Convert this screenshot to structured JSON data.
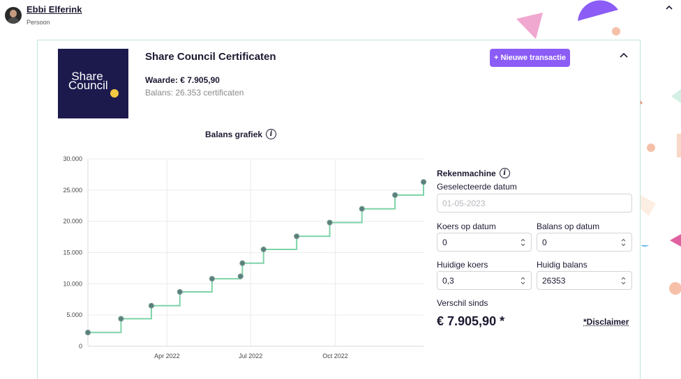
{
  "person": {
    "name": "Ebbi Elferink",
    "type": "Persoon"
  },
  "asset": {
    "name": "Share Council Certificaten",
    "logo_text": "Share Council",
    "waarde": "Waarde: € 7.905,90",
    "balans": "Balans: 26.353 certificaten",
    "new_transaction_label": "+ Nieuwe transactie"
  },
  "chart_title": "Balans grafiek",
  "chart_data": {
    "type": "line",
    "step": true,
    "title": "Balans grafiek",
    "xlabel": "",
    "ylabel": "",
    "ylim": [
      0,
      30000
    ],
    "yticks": [
      "0",
      "5.000",
      "10.000",
      "15.000",
      "20.000",
      "25.000",
      "30.000"
    ],
    "yticks_values": [
      0,
      5000,
      10000,
      15000,
      20000,
      25000,
      30000
    ],
    "xticks": [
      "Apr 2022",
      "Jul 2022",
      "Oct 2022"
    ],
    "xticks_dates": [
      "2022-04-01",
      "2022-07-01",
      "2022-10-01"
    ],
    "xlim": [
      "2022-01-05",
      "2023-01-05"
    ],
    "grid": true,
    "line_color": "#7dd3a8",
    "point_color": "#5b7f7a",
    "points": [
      {
        "x": "2022-01-05",
        "y": 2200
      },
      {
        "x": "2022-02-10",
        "y": 4400
      },
      {
        "x": "2022-03-15",
        "y": 6500
      },
      {
        "x": "2022-04-15",
        "y": 8700
      },
      {
        "x": "2022-05-20",
        "y": 10800
      },
      {
        "x": "2022-06-20",
        "y": 11200
      },
      {
        "x": "2022-06-22",
        "y": 13300
      },
      {
        "x": "2022-07-15",
        "y": 15500
      },
      {
        "x": "2022-08-20",
        "y": 17600
      },
      {
        "x": "2022-09-25",
        "y": 19800
      },
      {
        "x": "2022-10-30",
        "y": 22000
      },
      {
        "x": "2022-12-05",
        "y": 24200
      },
      {
        "x": "2023-01-05",
        "y": 26300
      }
    ]
  },
  "calculator": {
    "title": "Rekenmachine",
    "selected_date_label": "Geselecteerde datum",
    "selected_date_placeholder": "01-05-2023",
    "koers_label": "Koers op datum",
    "koers_value": "0",
    "balans_op_datum_label": "Balans op datum",
    "balans_op_datum_value": "0",
    "huidige_koers_label": "Huidige koers",
    "huidige_koers_value": "0,3",
    "huidig_balans_label": "Huidig balans",
    "huidig_balans_value": "26353",
    "verschil_label": "Verschil sinds",
    "verschil_value": "€ 7.905,90 *",
    "disclaimer": "*Disclaimer"
  },
  "colors": {
    "accent": "#8b5cf6",
    "logo_bg": "#1c1a4d",
    "card_border": "#bfe6d6"
  }
}
